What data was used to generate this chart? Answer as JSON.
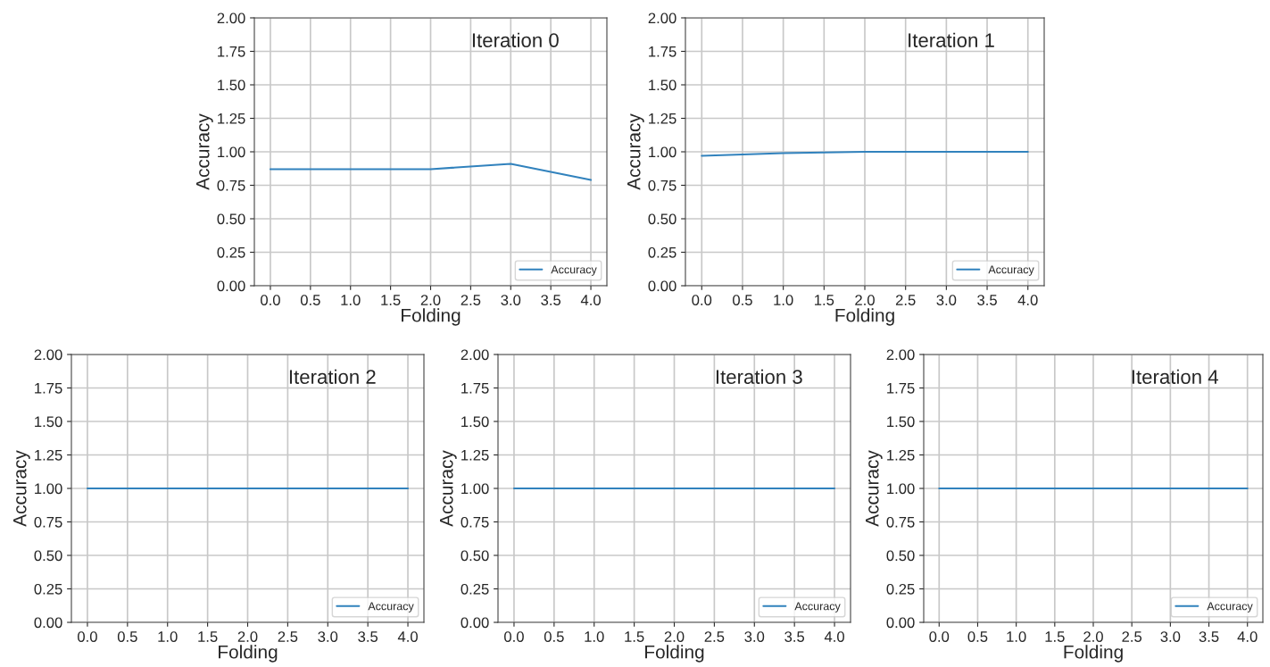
{
  "chart_data": [
    {
      "type": "line",
      "title": "Iteration 0",
      "xlabel": "Folding",
      "ylabel": "Accuracy",
      "x": [
        0,
        1,
        2,
        3,
        4
      ],
      "series": [
        {
          "name": "Accuracy",
          "color": "#3182bd",
          "values": [
            0.87,
            0.87,
            0.87,
            0.91,
            0.79
          ]
        }
      ],
      "xlim": [
        -0.2,
        4.2
      ],
      "ylim": [
        0,
        2
      ],
      "xticks": [
        {
          "value": 0,
          "label": "0.0"
        },
        0.5,
        {
          "value": 1,
          "label": "1.0"
        },
        1.5,
        {
          "value": 2,
          "label": "2.0"
        },
        2.5,
        {
          "value": 3,
          "label": "3.0"
        },
        3.5,
        {
          "value": 4,
          "label": "4.0"
        }
      ],
      "yticks": [
        {
          "value": 0,
          "label": "0.00"
        },
        0.25,
        {
          "value": 0.5,
          "label": "0.50"
        },
        0.75,
        {
          "value": 1,
          "label": "1.00"
        },
        1.25,
        {
          "value": 1.5,
          "label": "1.50"
        },
        1.75,
        {
          "value": 2,
          "label": "2.00"
        }
      ],
      "grid": true,
      "legend": "bottom right"
    },
    {
      "type": "line",
      "title": "Iteration 1",
      "xlabel": "Folding",
      "ylabel": "Accuracy",
      "x": [
        0,
        1,
        2,
        3,
        4
      ],
      "series": [
        {
          "name": "Accuracy",
          "color": "#3182bd",
          "values": [
            0.97,
            0.99,
            1.0,
            1.0,
            1.0
          ]
        }
      ],
      "xlim": [
        -0.2,
        4.2
      ],
      "ylim": [
        0,
        2
      ],
      "xticks": [
        {
          "value": 0,
          "label": "0.0"
        },
        0.5,
        {
          "value": 1,
          "label": "1.0"
        },
        1.5,
        {
          "value": 2,
          "label": "2.0"
        },
        2.5,
        {
          "value": 3,
          "label": "3.0"
        },
        3.5,
        {
          "value": 4,
          "label": "4.0"
        }
      ],
      "yticks": [
        {
          "value": 0,
          "label": "0.00"
        },
        0.25,
        {
          "value": 0.5,
          "label": "0.50"
        },
        0.75,
        {
          "value": 1,
          "label": "1.00"
        },
        1.25,
        {
          "value": 1.5,
          "label": "1.50"
        },
        1.75,
        {
          "value": 2,
          "label": "2.00"
        }
      ],
      "grid": true,
      "legend": "bottom right"
    },
    {
      "type": "line",
      "title": "Iteration 2",
      "xlabel": "Folding",
      "ylabel": "Accuracy",
      "x": [
        0,
        1,
        2,
        3,
        4
      ],
      "series": [
        {
          "name": "Accuracy",
          "color": "#3182bd",
          "values": [
            1.0,
            1.0,
            1.0,
            1.0,
            1.0
          ]
        }
      ],
      "xlim": [
        -0.2,
        4.2
      ],
      "ylim": [
        0,
        2
      ],
      "xticks": [
        {
          "value": 0,
          "label": "0.0"
        },
        0.5,
        {
          "value": 1,
          "label": "1.0"
        },
        1.5,
        {
          "value": 2,
          "label": "2.0"
        },
        2.5,
        {
          "value": 3,
          "label": "3.0"
        },
        3.5,
        {
          "value": 4,
          "label": "4.0"
        }
      ],
      "yticks": [
        {
          "value": 0,
          "label": "0.00"
        },
        0.25,
        {
          "value": 0.5,
          "label": "0.50"
        },
        0.75,
        {
          "value": 1,
          "label": "1.00"
        },
        1.25,
        {
          "value": 1.5,
          "label": "1.50"
        },
        1.75,
        {
          "value": 2,
          "label": "2.00"
        }
      ],
      "grid": true,
      "legend": "bottom right"
    },
    {
      "type": "line",
      "title": "Iteration 3",
      "xlabel": "Folding",
      "ylabel": "Accuracy",
      "x": [
        0,
        1,
        2,
        3,
        4
      ],
      "series": [
        {
          "name": "Accuracy",
          "color": "#3182bd",
          "values": [
            1.0,
            1.0,
            1.0,
            1.0,
            1.0
          ]
        }
      ],
      "xlim": [
        -0.2,
        4.2
      ],
      "ylim": [
        0,
        2
      ],
      "xticks": [
        {
          "value": 0,
          "label": "0.0"
        },
        0.5,
        {
          "value": 1,
          "label": "1.0"
        },
        1.5,
        {
          "value": 2,
          "label": "2.0"
        },
        2.5,
        {
          "value": 3,
          "label": "3.0"
        },
        3.5,
        {
          "value": 4,
          "label": "4.0"
        }
      ],
      "yticks": [
        {
          "value": 0,
          "label": "0.00"
        },
        0.25,
        {
          "value": 0.5,
          "label": "0.50"
        },
        0.75,
        {
          "value": 1,
          "label": "1.00"
        },
        1.25,
        {
          "value": 1.5,
          "label": "1.50"
        },
        1.75,
        {
          "value": 2,
          "label": "2.00"
        }
      ],
      "grid": true,
      "legend": "bottom right"
    },
    {
      "type": "line",
      "title": "Iteration 4",
      "xlabel": "Folding",
      "ylabel": "Accuracy",
      "x": [
        0,
        1,
        2,
        3,
        4
      ],
      "series": [
        {
          "name": "Accuracy",
          "color": "#3182bd",
          "values": [
            1.0,
            1.0,
            1.0,
            1.0,
            1.0
          ]
        }
      ],
      "xlim": [
        -0.2,
        4.2
      ],
      "ylim": [
        0,
        2
      ],
      "xticks": [
        {
          "value": 0,
          "label": "0.0"
        },
        0.5,
        {
          "value": 1,
          "label": "1.0"
        },
        1.5,
        {
          "value": 2,
          "label": "2.0"
        },
        2.5,
        {
          "value": 3,
          "label": "3.0"
        },
        3.5,
        {
          "value": 4,
          "label": "4.0"
        }
      ],
      "yticks": [
        {
          "value": 0,
          "label": "0.00"
        },
        0.25,
        {
          "value": 0.5,
          "label": "0.50"
        },
        0.75,
        {
          "value": 1,
          "label": "1.00"
        },
        1.25,
        {
          "value": 1.5,
          "label": "1.50"
        },
        1.75,
        {
          "value": 2,
          "label": "2.00"
        }
      ],
      "grid": true,
      "legend": "bottom right"
    }
  ]
}
